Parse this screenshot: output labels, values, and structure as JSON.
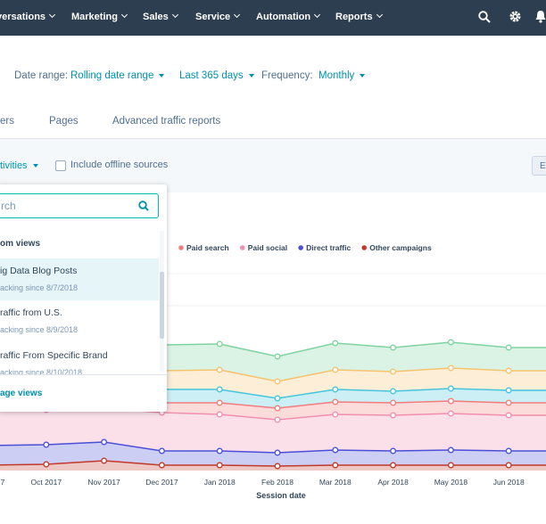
{
  "nav": {
    "items": [
      "versations",
      "Marketing",
      "Sales",
      "Service",
      "Automation",
      "Reports"
    ]
  },
  "filters": {
    "date_range_label": "Date range:",
    "date_range": "Rolling date range",
    "period": "Last 365 days",
    "frequency_label": "Frequency:",
    "frequency": "Monthly"
  },
  "tabs": [
    "ers",
    "Pages",
    "Advanced traffic reports"
  ],
  "toolbar": {
    "filter": "tivities",
    "checkbox": "Include offline sources",
    "button": "E"
  },
  "dropdown": {
    "search_placeholder": "rch",
    "group": "om views",
    "items": [
      {
        "title": "ig Data Blog Posts",
        "subtitle": "acking since 8/7/2018"
      },
      {
        "title": "raffic from U.S.",
        "subtitle": "acking since 8/9/2018"
      },
      {
        "title": "raffic From Specific Brand",
        "subtitle": "acking since 8/10/2018"
      }
    ],
    "footer": "age views"
  },
  "chart_data": {
    "type": "stacked-area",
    "x_label": "Session date",
    "categories": [
      "7",
      "Oct 2017",
      "Nov 2017",
      "Dec 2017",
      "Jan 2018",
      "Feb 2018",
      "Mar 2018",
      "Apr 2018",
      "May 2018",
      "Jun 2018"
    ],
    "ylim": [
      0,
      228
    ],
    "series": [
      {
        "color": "#7fd3a0",
        "values": [
          29,
          29,
          29,
          29,
          29,
          28,
          30,
          27,
          29,
          26
        ]
      },
      {
        "color": "#f6c36e",
        "values": [
          21,
          21,
          21,
          21,
          22,
          19,
          22,
          22,
          23,
          22
        ]
      },
      {
        "color": "#45c5dc",
        "values": [
          13,
          13,
          12,
          15,
          15,
          11,
          14,
          13,
          14,
          14
        ]
      },
      {
        "name": "Paid search",
        "color": "#f47c7c",
        "values": [
          10,
          10,
          10,
          11,
          13,
          13,
          14,
          14,
          14,
          14
        ]
      },
      {
        "name": "Paid social",
        "color": "#f08fb0",
        "values": [
          40,
          39,
          38,
          43,
          41,
          37,
          40,
          40,
          41,
          40
        ]
      },
      {
        "name": "Direct traffic",
        "color": "#4b4fd8",
        "values": [
          22,
          22,
          21,
          16,
          16,
          15,
          17,
          16,
          17,
          16
        ]
      },
      {
        "name": "Other campaigns",
        "color": "#c0392b",
        "values": [
          6,
          7,
          11,
          6,
          6,
          5,
          6,
          6,
          6,
          6
        ]
      }
    ]
  }
}
